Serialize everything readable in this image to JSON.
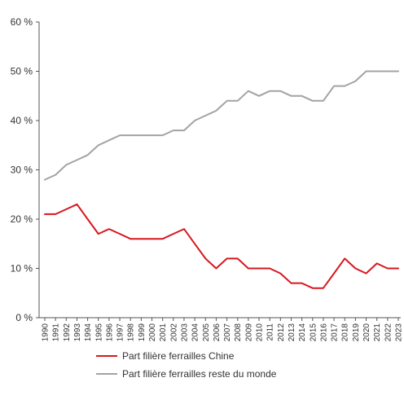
{
  "chart_data": {
    "type": "line",
    "x": [
      "1990",
      "1991",
      "1992",
      "1993",
      "1994",
      "1995",
      "1996",
      "1997",
      "1998",
      "1999",
      "2000",
      "2001",
      "2002",
      "2003",
      "2004",
      "2005",
      "2006",
      "2007",
      "2008",
      "2009",
      "2010",
      "2011",
      "2012",
      "2013",
      "2014",
      "2015",
      "2016",
      "2017",
      "2018",
      "2019",
      "2020",
      "2021",
      "2022",
      "2023"
    ],
    "series": [
      {
        "name": "Part filière ferrailles Chine",
        "color": "#d7171f",
        "values": [
          21,
          21,
          22,
          23,
          20,
          17,
          18,
          17,
          16,
          16,
          16,
          16,
          17,
          18,
          15,
          12,
          10,
          12,
          12,
          10,
          10,
          10,
          9,
          7,
          7,
          6,
          6,
          9,
          12,
          10,
          9,
          11,
          10,
          10
        ]
      },
      {
        "name": "Part filière ferrailles reste du monde",
        "color": "#a3a3a3",
        "values": [
          28,
          29,
          31,
          32,
          33,
          35,
          36,
          37,
          37,
          37,
          37,
          37,
          38,
          38,
          40,
          41,
          42,
          44,
          44,
          46,
          45,
          46,
          46,
          45,
          45,
          44,
          44,
          47,
          47,
          48,
          50,
          50,
          50,
          50
        ]
      }
    ],
    "y_ticks": [
      0,
      10,
      20,
      30,
      40,
      50,
      60
    ],
    "y_tick_labels": [
      "0 %",
      "10 %",
      "20 %",
      "30 %",
      "40 %",
      "50 %",
      "60 %"
    ],
    "ylim": [
      0,
      60
    ],
    "grid": false,
    "legend_position": "bottom"
  }
}
